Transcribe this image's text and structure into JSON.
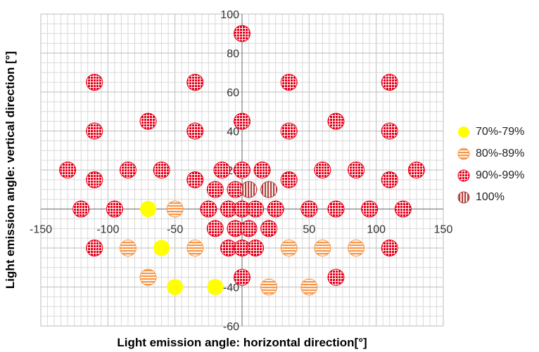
{
  "chart_data": {
    "type": "scatter",
    "xlabel": "Light emission angle: horizontal direction[°]",
    "ylabel": "Light emission angle: vertical direction [°]",
    "xlim": [
      -150,
      150
    ],
    "ylim": [
      -60,
      100
    ],
    "xticks": [
      -150,
      -100,
      -50,
      0,
      50,
      100,
      150
    ],
    "yticks": [
      -60,
      -40,
      -20,
      0,
      20,
      40,
      60,
      80,
      100
    ],
    "grid": true,
    "legend_position": "right",
    "series": [
      {
        "name": "70%-79%",
        "color": "#ffff00",
        "pattern": "solid",
        "points": [
          [
            -70,
            0
          ],
          [
            -60,
            -20
          ],
          [
            -50,
            -40
          ],
          [
            -20,
            -40
          ]
        ]
      },
      {
        "name": "80%-89%",
        "color": "#f79646",
        "pattern": "horizontal",
        "points": [
          [
            -50,
            0
          ],
          [
            -85,
            -20
          ],
          [
            -35,
            -20
          ],
          [
            -70,
            -35
          ],
          [
            35,
            -20
          ],
          [
            60,
            -20
          ],
          [
            85,
            -20
          ],
          [
            20,
            -40
          ],
          [
            50,
            -40
          ]
        ]
      },
      {
        "name": "90%-99%",
        "color": "#e8001a",
        "pattern": "grid",
        "points": [
          [
            0,
            90
          ],
          [
            -110,
            65
          ],
          [
            -35,
            65
          ],
          [
            35,
            65
          ],
          [
            110,
            65
          ],
          [
            -110,
            40
          ],
          [
            -70,
            45
          ],
          [
            -35,
            40
          ],
          [
            0,
            45
          ],
          [
            35,
            40
          ],
          [
            70,
            45
          ],
          [
            110,
            40
          ],
          [
            -130,
            20
          ],
          [
            -85,
            20
          ],
          [
            -60,
            20
          ],
          [
            -15,
            20
          ],
          [
            0,
            20
          ],
          [
            15,
            20
          ],
          [
            60,
            20
          ],
          [
            85,
            20
          ],
          [
            130,
            20
          ],
          [
            -110,
            15
          ],
          [
            -35,
            15
          ],
          [
            35,
            15
          ],
          [
            110,
            15
          ],
          [
            -20,
            10
          ],
          [
            -5,
            10
          ],
          [
            -120,
            0
          ],
          [
            -95,
            0
          ],
          [
            -25,
            0
          ],
          [
            -10,
            0
          ],
          [
            0,
            0
          ],
          [
            10,
            0
          ],
          [
            25,
            0
          ],
          [
            50,
            0
          ],
          [
            70,
            0
          ],
          [
            95,
            0
          ],
          [
            120,
            0
          ],
          [
            -20,
            -10
          ],
          [
            -5,
            -10
          ],
          [
            5,
            -10
          ],
          [
            20,
            -10
          ],
          [
            -110,
            -20
          ],
          [
            -10,
            -20
          ],
          [
            0,
            -20
          ],
          [
            10,
            -20
          ],
          [
            110,
            -20
          ],
          [
            0,
            -35
          ],
          [
            70,
            -35
          ]
        ]
      },
      {
        "name": "100%",
        "color": "#b0413e",
        "pattern": "vertical",
        "points": [
          [
            5,
            10
          ],
          [
            20,
            10
          ]
        ]
      }
    ]
  }
}
